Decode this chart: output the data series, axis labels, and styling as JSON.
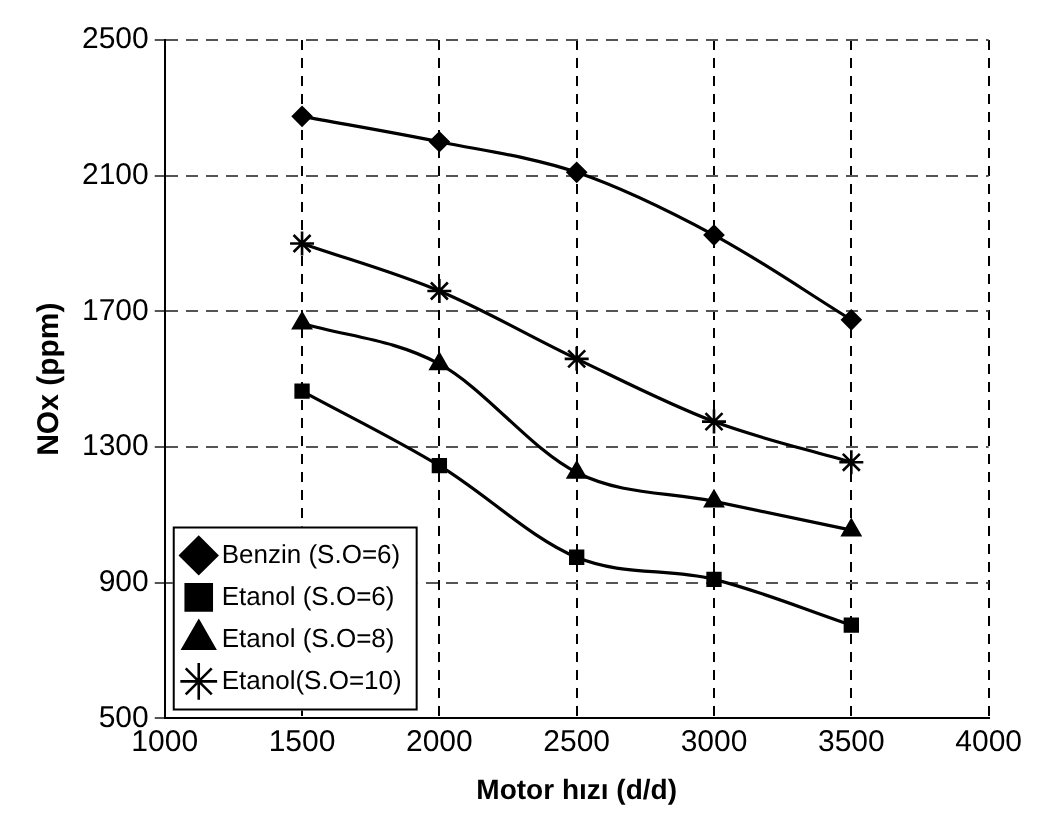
{
  "chart_data": {
    "type": "line",
    "xlabel": "Motor hızı (d/d)",
    "ylabel": "NOx (ppm)",
    "x": [
      1500,
      2000,
      2500,
      3000,
      3500
    ],
    "series": [
      {
        "name": "Benzin (S.O=6)",
        "color": "#000000",
        "marker": "diamond",
        "values": [
          2275,
          2200,
          2110,
          1925,
          1675
        ]
      },
      {
        "name": "Etanol (S.O=6)",
        "color": "#000000",
        "marker": "square",
        "values": [
          1465,
          1245,
          975,
          910,
          775
        ]
      },
      {
        "name": "Etanol (S.O=8)",
        "color": "#000000",
        "marker": "triangle",
        "values": [
          1665,
          1545,
          1225,
          1140,
          1055
        ]
      },
      {
        "name": "Etanol(S.O=10)",
        "color": "#000000",
        "marker": "cross",
        "values": [
          1900,
          1760,
          1560,
          1375,
          1255
        ]
      }
    ],
    "xlim": [
      1000,
      4000
    ],
    "xticks": [
      1000,
      1500,
      2000,
      2500,
      3000,
      3500,
      4000
    ],
    "ylim": [
      500,
      2500
    ],
    "yticks": [
      500,
      900,
      1300,
      1700,
      2100,
      2500
    ],
    "grid": true,
    "legend": "bottom left",
    "line_style": "solid"
  }
}
